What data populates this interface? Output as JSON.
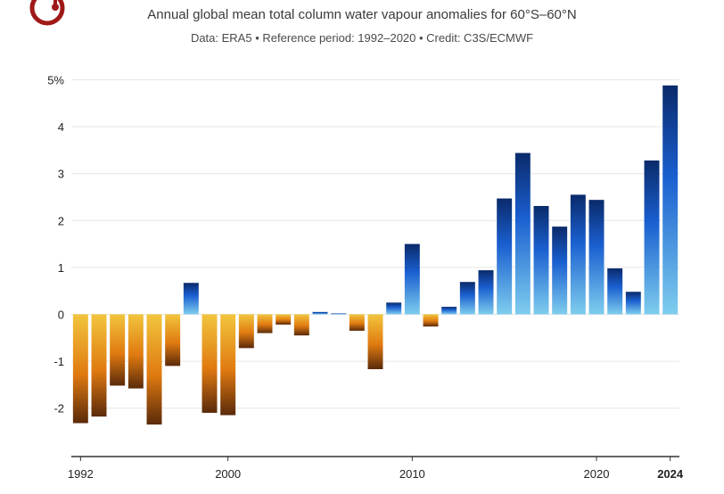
{
  "chart_data": {
    "type": "bar",
    "title": "Annual global mean total column water vapour anomalies for 60°S–60°N",
    "subtitle": "Data: ERA5 • Reference period: 1992–2020 • Credit: C3S/ECMWF",
    "x": [
      1992,
      1993,
      1994,
      1995,
      1996,
      1997,
      1998,
      1999,
      2000,
      2001,
      2002,
      2003,
      2004,
      2005,
      2006,
      2007,
      2008,
      2009,
      2010,
      2011,
      2012,
      2013,
      2014,
      2015,
      2016,
      2017,
      2018,
      2019,
      2020,
      2021,
      2022,
      2023,
      2024
    ],
    "values": [
      -2.32,
      -2.18,
      -1.52,
      -1.58,
      -2.35,
      -1.1,
      0.67,
      -2.1,
      -2.15,
      -0.72,
      -0.4,
      -0.22,
      -0.45,
      0.05,
      0.02,
      -0.35,
      -1.17,
      0.25,
      1.5,
      -0.26,
      0.16,
      0.69,
      0.94,
      2.47,
      3.44,
      2.31,
      1.87,
      2.55,
      2.44,
      0.98,
      0.48,
      3.28,
      4.88
    ],
    "y_ticks": [
      "5%",
      "4",
      "3",
      "2",
      "1",
      "0",
      "-1",
      "-2"
    ],
    "x_tick_labels": [
      "1992",
      "2000",
      "2010",
      "2020",
      "2024"
    ],
    "ylim": [
      -2.9,
      5.1
    ],
    "xlabel": "",
    "ylabel": "",
    "grid": true,
    "colors": {
      "negative_top": "#f2c53d",
      "negative_mid": "#e07a10",
      "negative_bottom": "#5a2a0a",
      "positive_low": "#7fcdee",
      "positive_mid": "#1a5fd0",
      "positive_high": "#0a2a6a",
      "grid": "#e6e6e6",
      "axis": "#333333",
      "logo": "#a01818"
    }
  }
}
